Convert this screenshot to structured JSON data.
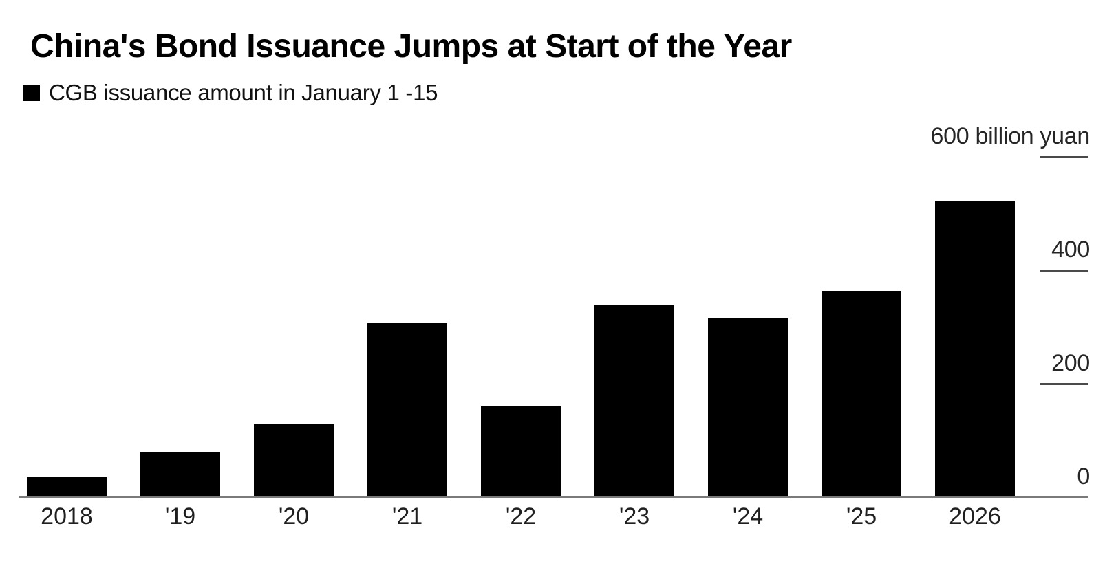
{
  "title": "China's Bond Issuance Jumps at Start of the Year",
  "legend": {
    "marker_color": "#000000",
    "label": "CGB issuance amount in January 1 -15"
  },
  "chart_data": {
    "type": "bar",
    "title": "China's Bond Issuance Jumps at Start of the Year",
    "series_name": "CGB issuance amount in January 1 -15",
    "categories": [
      "2018",
      "'19",
      "'20",
      "'21",
      "'22",
      "'23",
      "'24",
      "'25",
      "2026"
    ],
    "values": [
      36,
      79,
      128,
      308,
      160,
      339,
      316,
      364,
      523
    ],
    "unit": "billion yuan",
    "ylim": [
      0,
      600
    ],
    "yticks": [
      {
        "value": 600,
        "label": "600 billion yuan"
      },
      {
        "value": 400,
        "label": "400"
      },
      {
        "value": 200,
        "label": "200"
      },
      {
        "value": 0,
        "label": "0"
      }
    ],
    "axis_side": "right",
    "grid": false,
    "legend_position": "top-left",
    "bar_color": "#000000",
    "background": "#ffffff"
  }
}
